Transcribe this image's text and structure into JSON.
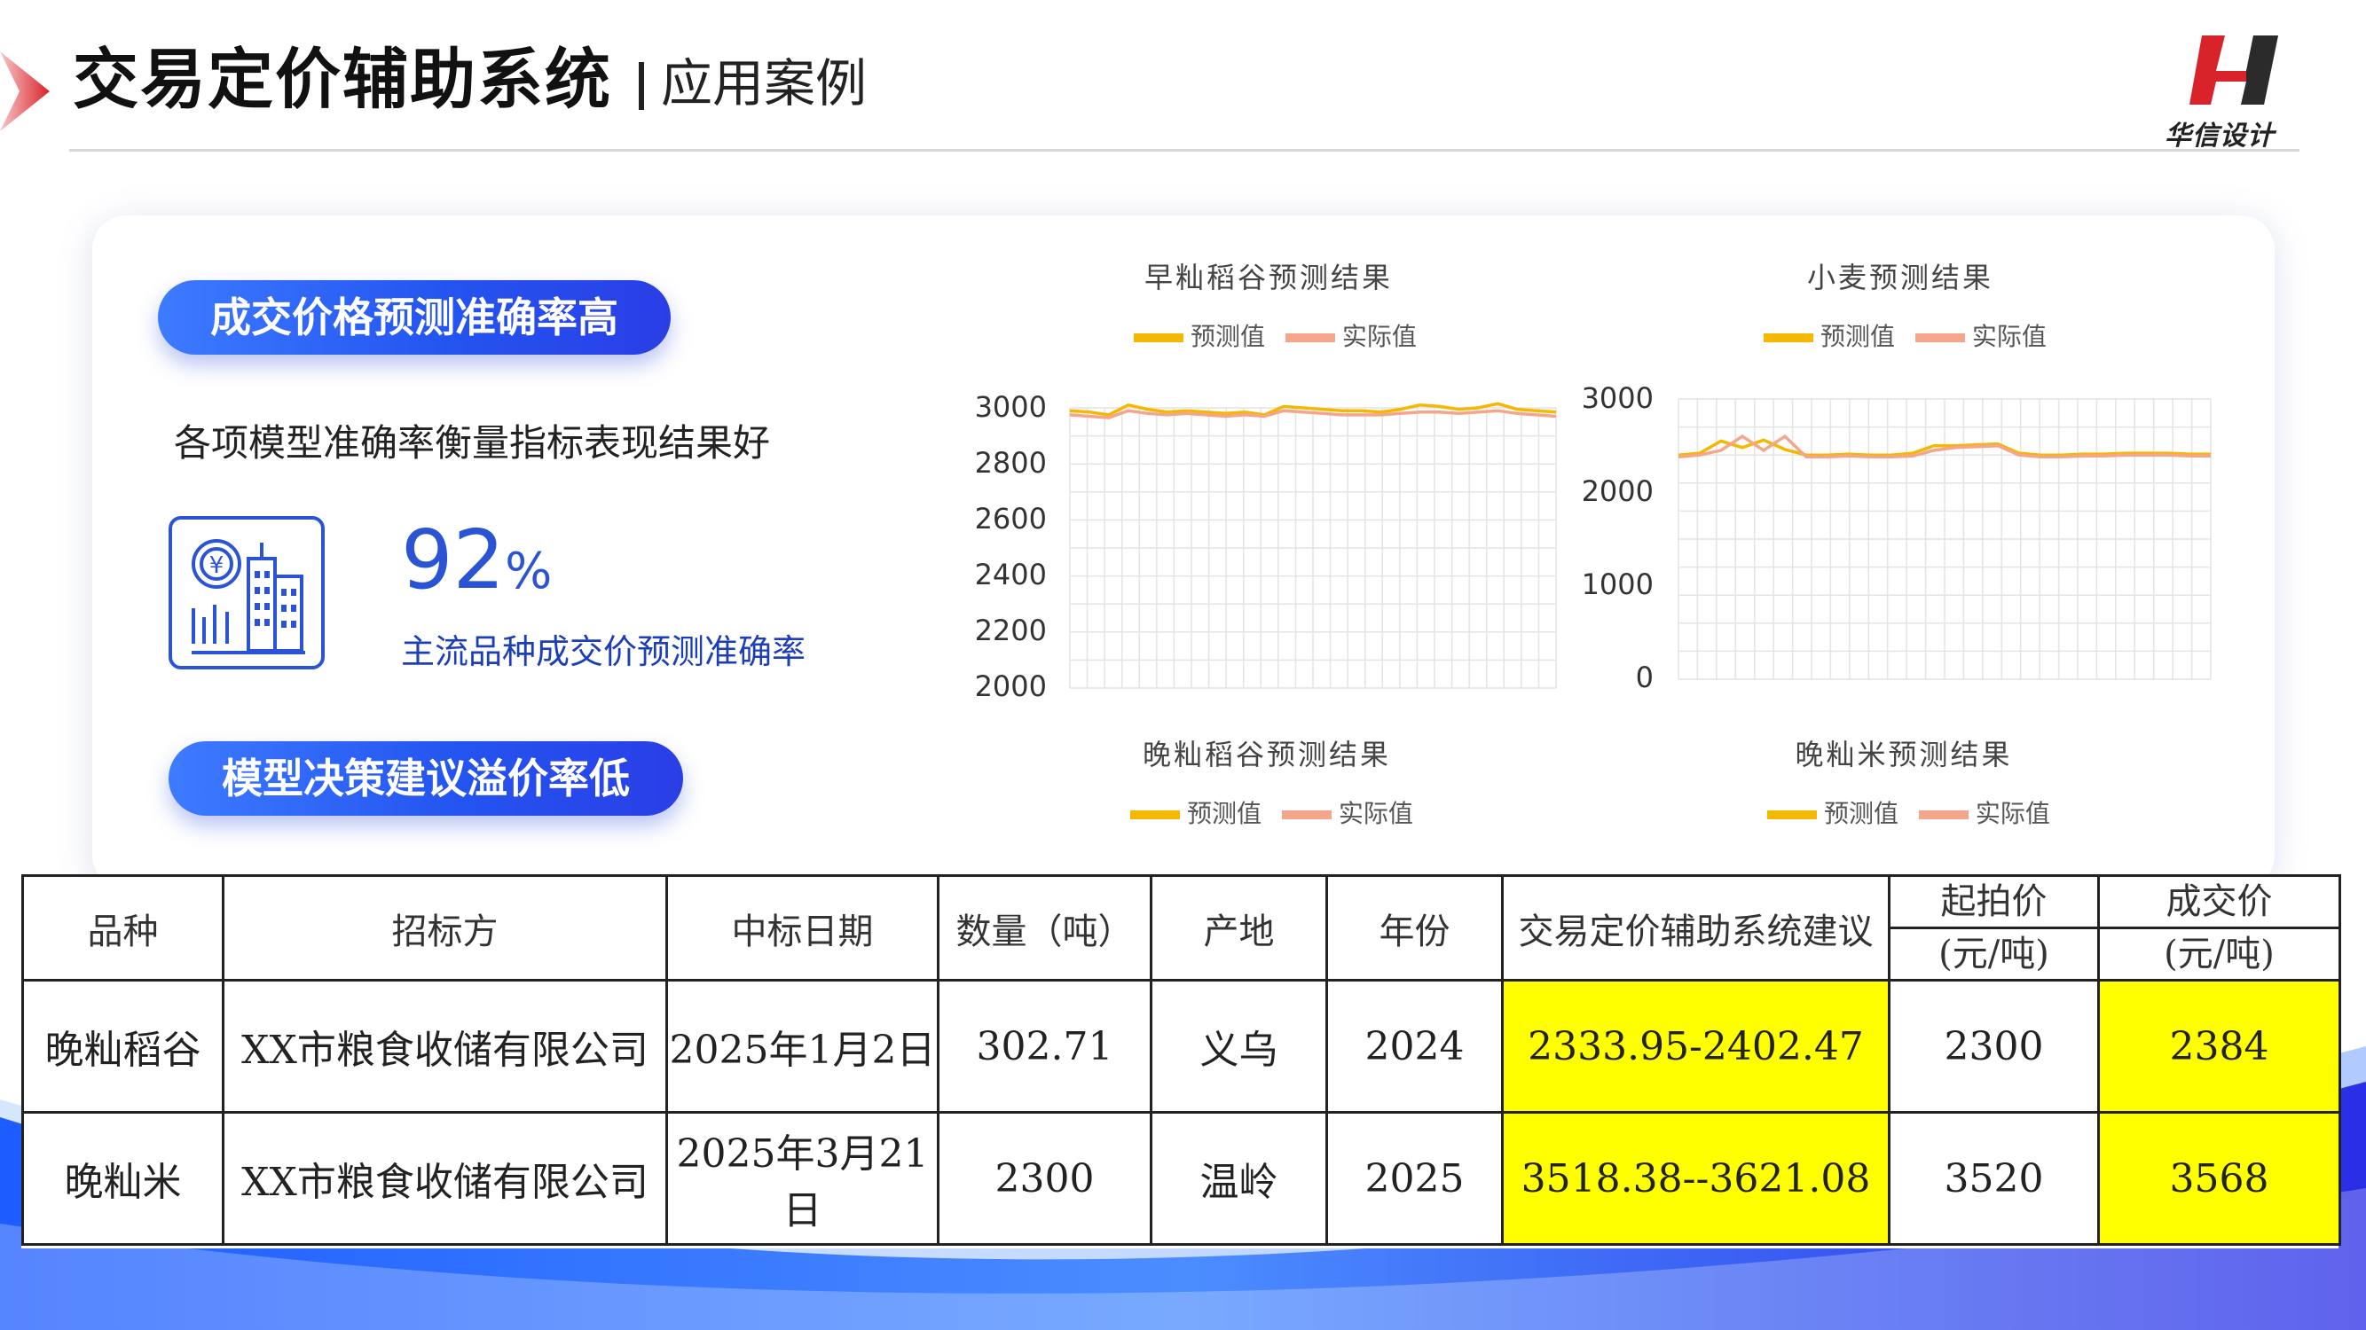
{
  "header": {
    "title": "交易定价辅助系统",
    "subtitle": "应用案例",
    "logo_text": "华信设计"
  },
  "colors": {
    "accent_blue": "#2a54d4",
    "brand_red": "#d8232a",
    "forecast_line": "#f5b800",
    "actual_line": "#f4a58a",
    "highlight": "#ffff00"
  },
  "left_panel": {
    "pill1": "成交价格预测准确率高",
    "desc": "各项模型准确率衡量指标表现结果好",
    "icon": "finance-building-icon",
    "percent_value": "92",
    "percent_sign": "%",
    "percent_label": "主流品种成交价预测准确率",
    "pill2": "模型决策建议溢价率低"
  },
  "chart_data": [
    {
      "type": "line",
      "title": "早籼稻谷预测结果",
      "legend": [
        "预测值",
        "实际值"
      ],
      "yticks": [
        "3000",
        "2800",
        "2600",
        "2400",
        "2200",
        "2000"
      ],
      "ylim": [
        2000,
        3000
      ],
      "x": [
        1,
        2,
        3,
        4,
        5,
        6,
        7,
        8,
        9,
        10,
        11,
        12,
        13,
        14,
        15,
        16,
        17,
        18,
        19,
        20,
        21,
        22,
        23,
        24,
        25,
        26
      ],
      "series": [
        {
          "name": "预测值",
          "values": [
            2990,
            2985,
            2975,
            3010,
            2995,
            2985,
            2990,
            2985,
            2980,
            2985,
            2975,
            3005,
            3000,
            2995,
            2990,
            2990,
            2985,
            2995,
            3010,
            3005,
            2995,
            3000,
            3015,
            2995,
            2990,
            2985
          ]
        },
        {
          "name": "实际值",
          "values": [
            2975,
            2970,
            2965,
            2990,
            2980,
            2975,
            2980,
            2975,
            2970,
            2975,
            2970,
            2990,
            2985,
            2980,
            2975,
            2975,
            2975,
            2980,
            2985,
            2985,
            2980,
            2985,
            2990,
            2980,
            2975,
            2970
          ]
        }
      ]
    },
    {
      "type": "line",
      "title": "小麦预测结果",
      "legend": [
        "预测值",
        "实际值"
      ],
      "yticks": [
        "3000",
        "2000",
        "1000",
        "0"
      ],
      "ylim": [
        0,
        3000
      ],
      "x": [
        1,
        2,
        3,
        4,
        5,
        6,
        7,
        8,
        9,
        10,
        11,
        12,
        13,
        14,
        15,
        16,
        17,
        18,
        19,
        20,
        21,
        22,
        23,
        24,
        25,
        26
      ],
      "series": [
        {
          "name": "预测值",
          "values": [
            2400,
            2420,
            2550,
            2480,
            2560,
            2460,
            2400,
            2400,
            2410,
            2400,
            2400,
            2420,
            2500,
            2500,
            2510,
            2520,
            2420,
            2400,
            2400,
            2410,
            2410,
            2420,
            2420,
            2420,
            2410,
            2410
          ]
        },
        {
          "name": "实际值",
          "values": [
            2380,
            2400,
            2450,
            2600,
            2450,
            2600,
            2380,
            2380,
            2390,
            2380,
            2380,
            2390,
            2450,
            2480,
            2490,
            2500,
            2400,
            2380,
            2380,
            2390,
            2390,
            2400,
            2400,
            2400,
            2390,
            2390
          ]
        }
      ]
    },
    {
      "type": "line",
      "title": "晚籼稻谷预测结果",
      "legend": [
        "预测值",
        "实际值"
      ]
    },
    {
      "type": "line",
      "title": "晚籼米预测结果",
      "legend": [
        "预测值",
        "实际值"
      ]
    }
  ],
  "table": {
    "headers": [
      "品种",
      "招标方",
      "中标日期",
      "数量（吨）",
      "产地",
      "年份",
      "交易定价辅助系统建议"
    ],
    "header_start_price": [
      "起拍价",
      "(元/吨)"
    ],
    "header_deal_price": [
      "成交价",
      "(元/吨)"
    ],
    "rows": [
      [
        "晚籼稻谷",
        "XX市粮食收储有限公司",
        "2025年1月2日",
        "302.71",
        "义乌",
        "2024",
        "2333.95-2402.47",
        "2300",
        "2384"
      ],
      [
        "晚籼米",
        "XX市粮食收储有限公司",
        "2025年3月21日",
        "2300",
        "温岭",
        "2025",
        "3518.38--3621.08",
        "3520",
        "3568"
      ]
    ]
  }
}
